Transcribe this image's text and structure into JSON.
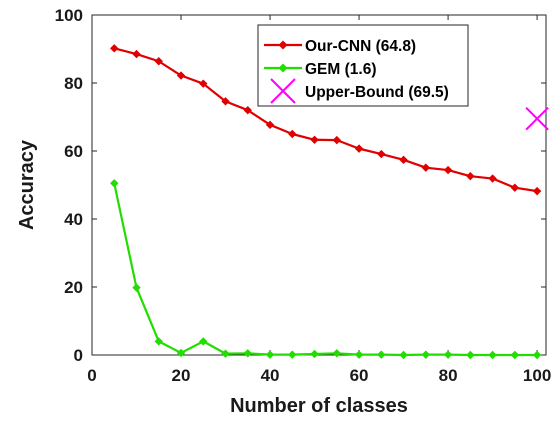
{
  "chart_data": {
    "type": "line",
    "xlabel": "Number of classes",
    "ylabel": "Accuracy",
    "xlim": [
      0,
      102
    ],
    "ylim": [
      0,
      100
    ],
    "xticks": [
      0,
      20,
      40,
      60,
      80,
      100
    ],
    "yticks": [
      0,
      20,
      40,
      60,
      80,
      100
    ],
    "grid": false,
    "legend_position": "top-right",
    "series": [
      {
        "name": "Our-CNN (64.8)",
        "color": "#e00000",
        "marker": "diamond",
        "x": [
          5,
          10,
          15,
          20,
          25,
          30,
          35,
          40,
          45,
          50,
          55,
          60,
          65,
          70,
          75,
          80,
          85,
          90,
          95,
          100
        ],
        "y": [
          90.2,
          88.5,
          86.4,
          82.2,
          79.8,
          74.6,
          72.0,
          67.7,
          65.0,
          63.3,
          63.2,
          60.7,
          59.1,
          57.4,
          55.1,
          54.4,
          52.6,
          51.9,
          49.2,
          48.2
        ]
      },
      {
        "name": "GEM (1.6)",
        "color": "#22dd00",
        "marker": "diamond",
        "x": [
          5,
          10,
          15,
          20,
          25,
          30,
          35,
          40,
          45,
          50,
          55,
          60,
          65,
          70,
          75,
          80,
          85,
          90,
          95,
          100
        ],
        "y": [
          50.5,
          19.8,
          4.0,
          0.6,
          4.0,
          0.4,
          0.5,
          0.1,
          0.1,
          0.3,
          0.5,
          0.1,
          0.1,
          0.0,
          0.1,
          0.1,
          0.0,
          0.0,
          0.0,
          0.0
        ]
      },
      {
        "name": "Upper-Bound (69.5)",
        "color": "#ff00ff",
        "marker": "x",
        "x": [
          100
        ],
        "y": [
          69.5
        ]
      }
    ]
  }
}
